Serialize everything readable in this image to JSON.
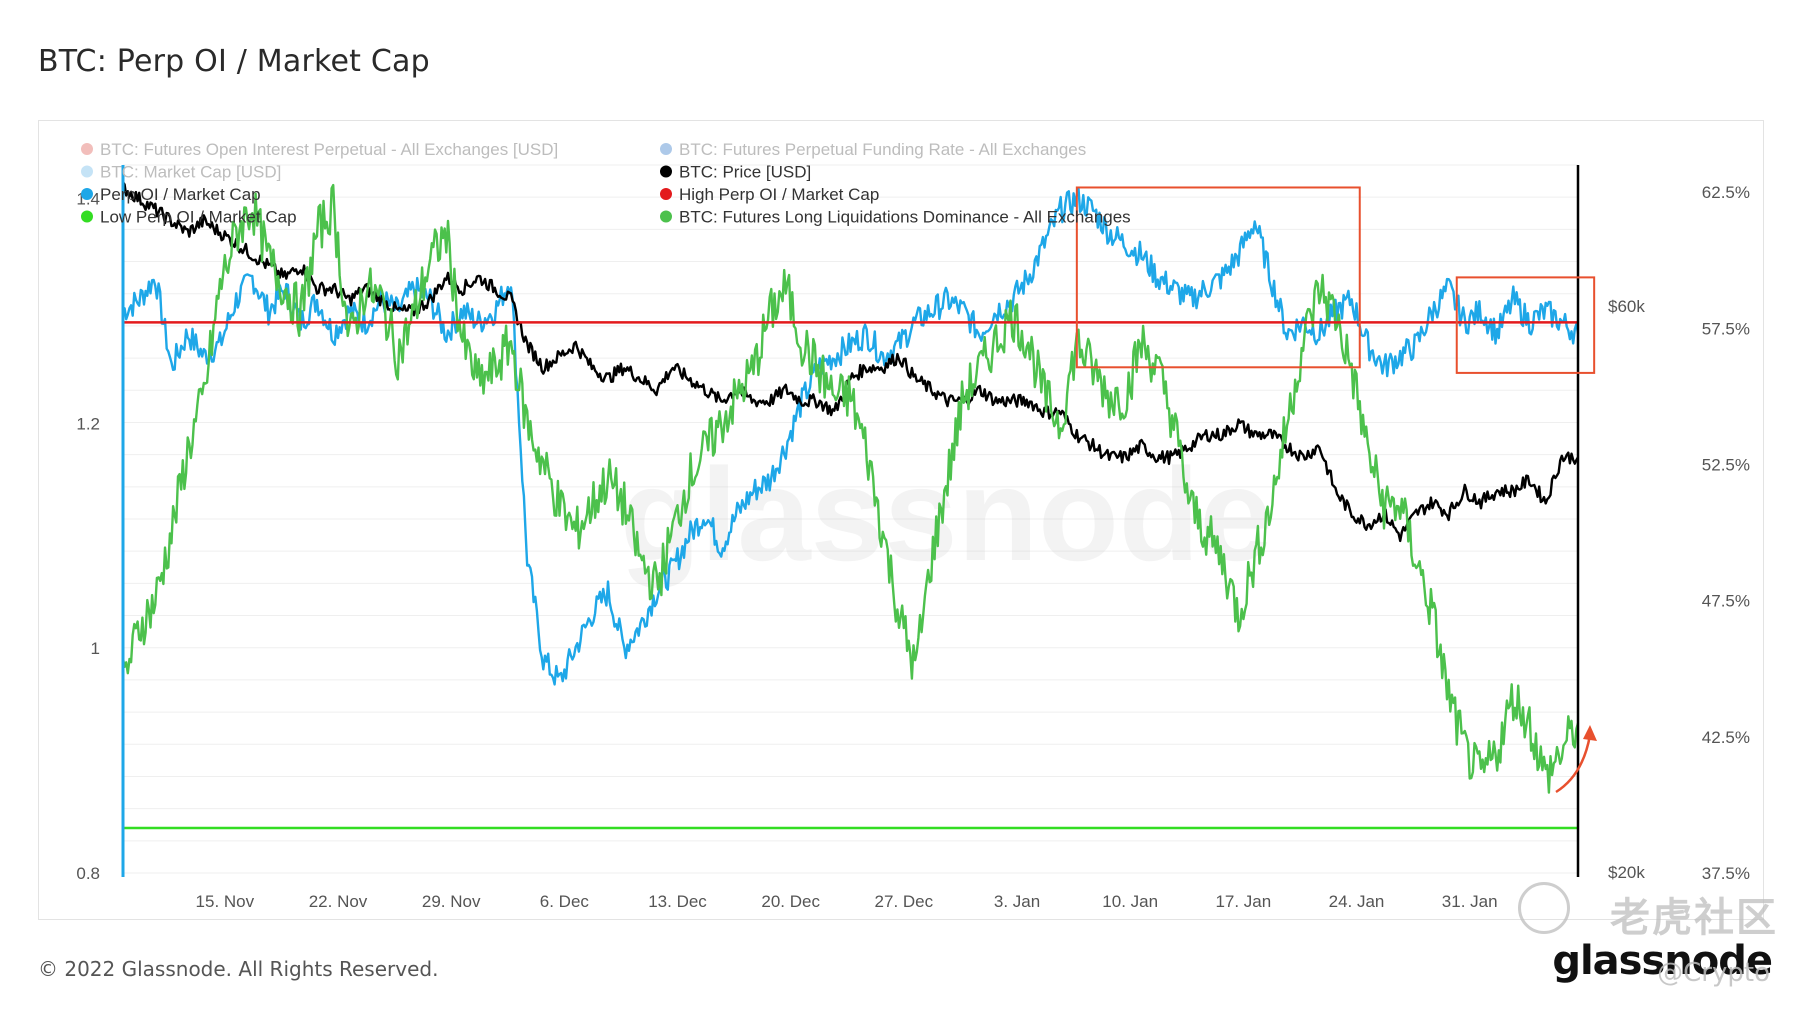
{
  "page": {
    "title": "BTC: Perp OI / Market Cap",
    "copyright": "© 2022 Glassnode. All Rights Reserved.",
    "brand": "glassnode",
    "watermark": "glassnode",
    "corner_watermark": "老虎社区",
    "corner_handle": "@Crypto"
  },
  "chart_data": {
    "type": "line",
    "title": "BTC: Perp OI / Market Cap",
    "x_labels": [
      "15. Nov",
      "22. Nov",
      "29. Nov",
      "6. Dec",
      "13. Dec",
      "20. Dec",
      "27. Dec",
      "3. Jan",
      "10. Jan",
      "17. Jan",
      "24. Jan",
      "31. Jan"
    ],
    "x_range_days": [
      0,
      90
    ],
    "y_left": {
      "ticks": [
        "1.4",
        "1.2",
        "1",
        "0.8"
      ],
      "range": [
        0.8,
        1.43
      ]
    },
    "y_right_pct": {
      "ticks": [
        "62.5%",
        "57.5%",
        "52.5%",
        "47.5%",
        "42.5%",
        "37.5%"
      ],
      "range": [
        37.5,
        63.5
      ]
    },
    "y_right_price": {
      "ticks": [
        "$60k",
        "$20k"
      ]
    },
    "grid": true,
    "legend_position": "top-left",
    "legend": [
      {
        "label": "BTC: Futures Open Interest Perpetual - All Exchanges [USD]",
        "color": "#d9453b",
        "faded": true
      },
      {
        "label": "BTC: Futures Perpetual Funding Rate - All Exchanges",
        "color": "#1565c0",
        "faded": true
      },
      {
        "label": "BTC: Market Cap [USD]",
        "color": "#5aaee6",
        "faded": true
      },
      {
        "label": "BTC: Price [USD]",
        "color": "#000000",
        "faded": false
      },
      {
        "label": "Perp OI / Market Cap",
        "color": "#1ea7e8",
        "faded": false
      },
      {
        "label": "High Perp OI / Market Cap",
        "color": "#e31a1c",
        "faded": false
      },
      {
        "label": "Low Perp OI / Market Cap",
        "color": "#33dd22",
        "faded": false
      },
      {
        "label": "BTC: Futures Long Liquidations Dominance - All Exchanges",
        "color": "#4cc14c",
        "faded": false
      }
    ],
    "thresholds": {
      "high": 1.29,
      "low": 0.84
    },
    "series": [
      {
        "name": "Perp OI / Market Cap",
        "color": "#1ea7e8",
        "axis": "left",
        "points": [
          [
            0,
            1.3
          ],
          [
            1,
            1.31
          ],
          [
            2,
            1.33
          ],
          [
            3,
            1.25
          ],
          [
            4,
            1.28
          ],
          [
            5,
            1.26
          ],
          [
            6,
            1.27
          ],
          [
            7,
            1.31
          ],
          [
            8,
            1.33
          ],
          [
            9,
            1.3
          ],
          [
            10,
            1.32
          ],
          [
            11,
            1.29
          ],
          [
            12,
            1.31
          ],
          [
            13,
            1.28
          ],
          [
            14,
            1.3
          ],
          [
            15,
            1.29
          ],
          [
            16,
            1.31
          ],
          [
            17,
            1.3
          ],
          [
            18,
            1.32
          ],
          [
            19,
            1.31
          ],
          [
            20,
            1.28
          ],
          [
            21,
            1.3
          ],
          [
            22,
            1.29
          ],
          [
            23,
            1.3
          ],
          [
            24,
            1.33
          ],
          [
            25,
            1.08
          ],
          [
            26,
            0.99
          ],
          [
            27,
            0.97
          ],
          [
            28,
            1.0
          ],
          [
            29,
            1.03
          ],
          [
            30,
            1.05
          ],
          [
            31,
            1.0
          ],
          [
            32,
            1.02
          ],
          [
            33,
            1.05
          ],
          [
            34,
            1.07
          ],
          [
            35,
            1.1
          ],
          [
            36,
            1.12
          ],
          [
            37,
            1.09
          ],
          [
            38,
            1.12
          ],
          [
            39,
            1.14
          ],
          [
            40,
            1.15
          ],
          [
            41,
            1.18
          ],
          [
            42,
            1.22
          ],
          [
            43,
            1.25
          ],
          [
            44,
            1.26
          ],
          [
            45,
            1.27
          ],
          [
            46,
            1.28
          ],
          [
            47,
            1.26
          ],
          [
            48,
            1.27
          ],
          [
            49,
            1.29
          ],
          [
            50,
            1.3
          ],
          [
            51,
            1.31
          ],
          [
            52,
            1.3
          ],
          [
            53,
            1.28
          ],
          [
            54,
            1.3
          ],
          [
            55,
            1.31
          ],
          [
            56,
            1.33
          ],
          [
            57,
            1.36
          ],
          [
            58,
            1.39
          ],
          [
            59,
            1.4
          ],
          [
            60,
            1.39
          ],
          [
            61,
            1.37
          ],
          [
            62,
            1.36
          ],
          [
            63,
            1.35
          ],
          [
            64,
            1.33
          ],
          [
            65,
            1.32
          ],
          [
            66,
            1.31
          ],
          [
            67,
            1.32
          ],
          [
            68,
            1.33
          ],
          [
            69,
            1.35
          ],
          [
            70,
            1.38
          ],
          [
            71,
            1.33
          ],
          [
            72,
            1.28
          ],
          [
            73,
            1.29
          ],
          [
            74,
            1.28
          ],
          [
            75,
            1.3
          ],
          [
            76,
            1.31
          ],
          [
            77,
            1.27
          ],
          [
            78,
            1.25
          ],
          [
            79,
            1.26
          ],
          [
            80,
            1.27
          ],
          [
            81,
            1.3
          ],
          [
            82,
            1.32
          ],
          [
            83,
            1.29
          ],
          [
            84,
            1.3
          ],
          [
            85,
            1.28
          ],
          [
            86,
            1.31
          ],
          [
            87,
            1.29
          ],
          [
            88,
            1.3
          ],
          [
            89,
            1.29
          ],
          [
            90,
            1.28
          ]
        ]
      },
      {
        "name": "BTC: Price [USD]",
        "color": "#000000",
        "axis": "price",
        "points": [
          [
            0,
            1.41
          ],
          [
            1,
            1.4
          ],
          [
            2,
            1.39
          ],
          [
            3,
            1.38
          ],
          [
            4,
            1.37
          ],
          [
            5,
            1.38
          ],
          [
            6,
            1.37
          ],
          [
            7,
            1.36
          ],
          [
            8,
            1.35
          ],
          [
            9,
            1.34
          ],
          [
            10,
            1.33
          ],
          [
            11,
            1.34
          ],
          [
            12,
            1.32
          ],
          [
            13,
            1.32
          ],
          [
            14,
            1.31
          ],
          [
            15,
            1.32
          ],
          [
            16,
            1.31
          ],
          [
            17,
            1.3
          ],
          [
            18,
            1.3
          ],
          [
            19,
            1.31
          ],
          [
            20,
            1.33
          ],
          [
            21,
            1.32
          ],
          [
            22,
            1.33
          ],
          [
            23,
            1.32
          ],
          [
            24,
            1.31
          ],
          [
            25,
            1.27
          ],
          [
            26,
            1.25
          ],
          [
            27,
            1.26
          ],
          [
            28,
            1.27
          ],
          [
            29,
            1.25
          ],
          [
            30,
            1.24
          ],
          [
            31,
            1.25
          ],
          [
            32,
            1.24
          ],
          [
            33,
            1.23
          ],
          [
            34,
            1.25
          ],
          [
            35,
            1.24
          ],
          [
            36,
            1.23
          ],
          [
            37,
            1.22
          ],
          [
            38,
            1.23
          ],
          [
            39,
            1.22
          ],
          [
            40,
            1.22
          ],
          [
            41,
            1.23
          ],
          [
            42,
            1.22
          ],
          [
            43,
            1.22
          ],
          [
            44,
            1.21
          ],
          [
            45,
            1.24
          ],
          [
            46,
            1.25
          ],
          [
            47,
            1.25
          ],
          [
            48,
            1.26
          ],
          [
            49,
            1.24
          ],
          [
            50,
            1.23
          ],
          [
            51,
            1.22
          ],
          [
            52,
            1.22
          ],
          [
            53,
            1.23
          ],
          [
            54,
            1.22
          ],
          [
            55,
            1.22
          ],
          [
            56,
            1.22
          ],
          [
            57,
            1.21
          ],
          [
            58,
            1.21
          ],
          [
            59,
            1.19
          ],
          [
            60,
            1.18
          ],
          [
            61,
            1.17
          ],
          [
            62,
            1.17
          ],
          [
            63,
            1.18
          ],
          [
            64,
            1.17
          ],
          [
            65,
            1.17
          ],
          [
            66,
            1.18
          ],
          [
            67,
            1.19
          ],
          [
            68,
            1.19
          ],
          [
            69,
            1.2
          ],
          [
            70,
            1.19
          ],
          [
            71,
            1.19
          ],
          [
            72,
            1.18
          ],
          [
            73,
            1.17
          ],
          [
            74,
            1.18
          ],
          [
            75,
            1.14
          ],
          [
            76,
            1.12
          ],
          [
            77,
            1.11
          ],
          [
            78,
            1.12
          ],
          [
            79,
            1.1
          ],
          [
            80,
            1.12
          ],
          [
            81,
            1.13
          ],
          [
            82,
            1.12
          ],
          [
            83,
            1.14
          ],
          [
            84,
            1.13
          ],
          [
            85,
            1.14
          ],
          [
            86,
            1.14
          ],
          [
            87,
            1.15
          ],
          [
            88,
            1.13
          ],
          [
            89,
            1.17
          ],
          [
            90,
            1.17
          ]
        ]
      },
      {
        "name": "BTC: Futures Long Liquidations Dominance - All Exchanges",
        "color": "#4cc14c",
        "axis": "right_pct",
        "points": [
          [
            0,
            44.5
          ],
          [
            1,
            46.5
          ],
          [
            2,
            47.5
          ],
          [
            3,
            50
          ],
          [
            4,
            53
          ],
          [
            5,
            55
          ],
          [
            6,
            59
          ],
          [
            7,
            61
          ],
          [
            8,
            62
          ],
          [
            9,
            60
          ],
          [
            10,
            59
          ],
          [
            11,
            58
          ],
          [
            12,
            61
          ],
          [
            13,
            62
          ],
          [
            14,
            57
          ],
          [
            15,
            59
          ],
          [
            16,
            58.5
          ],
          [
            17,
            56.5
          ],
          [
            18,
            58
          ],
          [
            19,
            60
          ],
          [
            20,
            61
          ],
          [
            21,
            57
          ],
          [
            22,
            55.5
          ],
          [
            23,
            56
          ],
          [
            24,
            57
          ],
          [
            25,
            54
          ],
          [
            26,
            52.5
          ],
          [
            27,
            51
          ],
          [
            28,
            50
          ],
          [
            29,
            51
          ],
          [
            30,
            52
          ],
          [
            31,
            51
          ],
          [
            32,
            49
          ],
          [
            33,
            48
          ],
          [
            34,
            50
          ],
          [
            35,
            52
          ],
          [
            36,
            53
          ],
          [
            37,
            54
          ],
          [
            38,
            55
          ],
          [
            39,
            56
          ],
          [
            40,
            58
          ],
          [
            41,
            59
          ],
          [
            42,
            57
          ],
          [
            43,
            56
          ],
          [
            44,
            55
          ],
          [
            45,
            55
          ],
          [
            46,
            53
          ],
          [
            47,
            50
          ],
          [
            48,
            47
          ],
          [
            49,
            45
          ],
          [
            50,
            49
          ],
          [
            51,
            52
          ],
          [
            52,
            55
          ],
          [
            53,
            56
          ],
          [
            54,
            57
          ],
          [
            55,
            58
          ],
          [
            56,
            57
          ],
          [
            57,
            55
          ],
          [
            58,
            54
          ],
          [
            59,
            57
          ],
          [
            60,
            56
          ],
          [
            61,
            55
          ],
          [
            62,
            55
          ],
          [
            63,
            57
          ],
          [
            64,
            56
          ],
          [
            65,
            54
          ],
          [
            66,
            51
          ],
          [
            67,
            50
          ],
          [
            68,
            49
          ],
          [
            69,
            47
          ],
          [
            70,
            49
          ],
          [
            71,
            51
          ],
          [
            72,
            54
          ],
          [
            73,
            57
          ],
          [
            74,
            59
          ],
          [
            75,
            58
          ],
          [
            76,
            56
          ],
          [
            77,
            53
          ],
          [
            78,
            51
          ],
          [
            79,
            51
          ],
          [
            80,
            49
          ],
          [
            81,
            47
          ],
          [
            82,
            44
          ],
          [
            83,
            42
          ],
          [
            84,
            41
          ],
          [
            85,
            42
          ],
          [
            86,
            44
          ],
          [
            87,
            43
          ],
          [
            88,
            41
          ],
          [
            89,
            42
          ],
          [
            90,
            43
          ]
        ]
      }
    ],
    "annotations": [
      {
        "type": "rect",
        "color": "#e8502e",
        "x_range": [
          59,
          76.5
        ],
        "y_range": [
          1.25,
          1.41
        ]
      },
      {
        "type": "rect",
        "color": "#e8502e",
        "x_range": [
          82.5,
          91
        ],
        "y_range": [
          1.245,
          1.33
        ]
      },
      {
        "type": "arrow",
        "color": "#e8502e"
      }
    ]
  }
}
